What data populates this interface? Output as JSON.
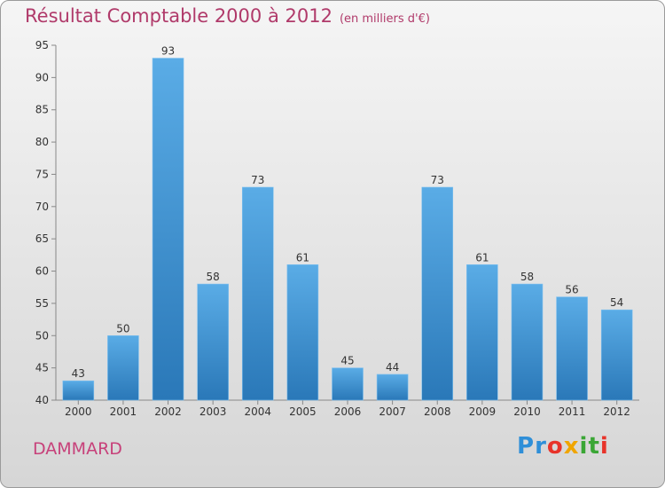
{
  "header": {
    "title": "Résultat Comptable 2000 à 2012",
    "subtitle": "(en milliers d'€)"
  },
  "footer": {
    "commune": "DAMMARD",
    "logo": [
      {
        "ch": "P",
        "color": "#2f8fd8"
      },
      {
        "ch": "r",
        "color": "#2f8fd8"
      },
      {
        "ch": "o",
        "color": "#e8332a"
      },
      {
        "ch": "x",
        "color": "#f0a500"
      },
      {
        "ch": "i",
        "color": "#3aa635"
      },
      {
        "ch": "t",
        "color": "#3aa635"
      },
      {
        "ch": "i",
        "color": "#e8332a"
      }
    ]
  },
  "chart_data": {
    "type": "bar",
    "title": "Résultat Comptable 2000 à 2012",
    "subtitle": "(en milliers d'€)",
    "categories": [
      "2000",
      "2001",
      "2002",
      "2003",
      "2004",
      "2005",
      "2006",
      "2007",
      "2008",
      "2009",
      "2010",
      "2011",
      "2012"
    ],
    "values": [
      43,
      50,
      93,
      58,
      73,
      61,
      45,
      44,
      73,
      61,
      58,
      56,
      54
    ],
    "ylim": [
      40,
      95
    ],
    "yticks": [
      40,
      45,
      50,
      55,
      60,
      65,
      70,
      75,
      80,
      85,
      90,
      95
    ],
    "grid": false,
    "colors": {
      "bar_top": "#5aace6",
      "bar_bottom": "#2a78b8"
    }
  }
}
